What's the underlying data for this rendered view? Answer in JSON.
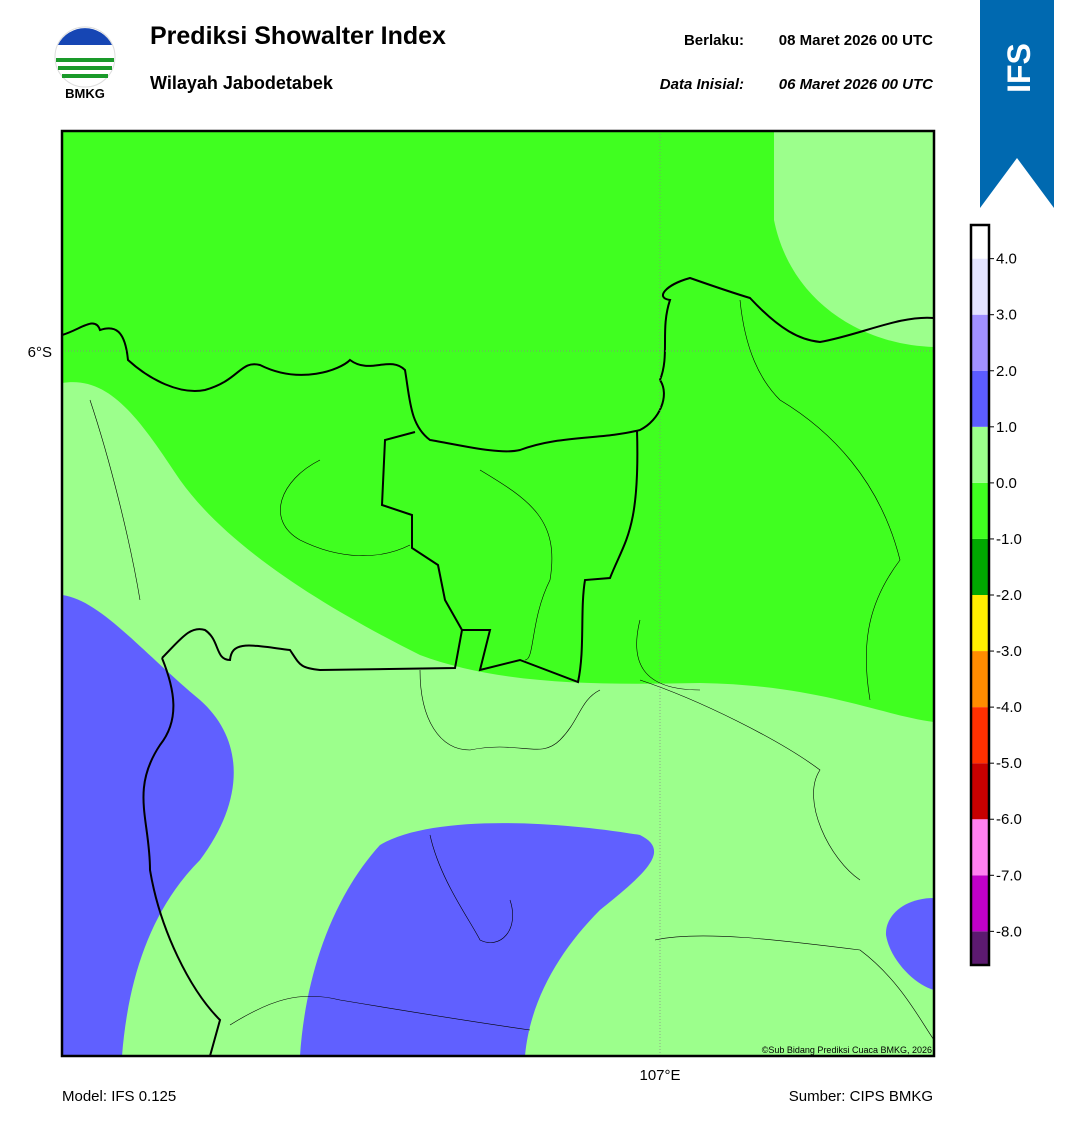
{
  "header": {
    "title": "Prediksi Showalter Index",
    "subtitle": "Wilayah Jabodetabek",
    "valid_label": "Berlaku:",
    "valid_time": "08 Maret 2026 00 UTC",
    "init_label": "Data Inisial:",
    "init_time": "06 Maret 2026 00 UTC",
    "logo_text": "BMKG",
    "badge": "IFS"
  },
  "map": {
    "lat_label": "6°S",
    "lon_label": "107°E",
    "credit": "©Sub Bidang Prediksi Cuaca BMKG, 2026"
  },
  "footer": {
    "model": "Model: IFS 0.125",
    "source": "Sumber: CIPS BMKG"
  },
  "colorbar": {
    "lim": [
      -8.6,
      4.6
    ],
    "bounds": [
      -8.6,
      -8,
      -7,
      -6,
      -5,
      -4,
      -3,
      -2,
      -1,
      0,
      1,
      2,
      3,
      4,
      4.6
    ],
    "colors": [
      "#5c1a70",
      "#c000c8",
      "#ff80f0",
      "#c80000",
      "#ff3000",
      "#ff8c00",
      "#ffee00",
      "#00a800",
      "#40ff20",
      "#9cff8c",
      "#5c5cff",
      "#a090ff",
      "#e4e4ff",
      "#ffffff"
    ],
    "ticks": [
      {
        "value": 4,
        "label": "4.0"
      },
      {
        "value": 3,
        "label": "3.0"
      },
      {
        "value": 2,
        "label": "2.0"
      },
      {
        "value": 1,
        "label": "1.0"
      },
      {
        "value": 0,
        "label": "0.0"
      },
      {
        "value": -1,
        "label": "-1.0"
      },
      {
        "value": -2,
        "label": "-2.0"
      },
      {
        "value": -3,
        "label": "-3.0"
      },
      {
        "value": -4,
        "label": "-4.0"
      },
      {
        "value": -5,
        "label": "-5.0"
      },
      {
        "value": -6,
        "label": "-6.0"
      },
      {
        "value": -7,
        "label": "-7.0"
      },
      {
        "value": -8,
        "label": "-8.0"
      }
    ]
  }
}
